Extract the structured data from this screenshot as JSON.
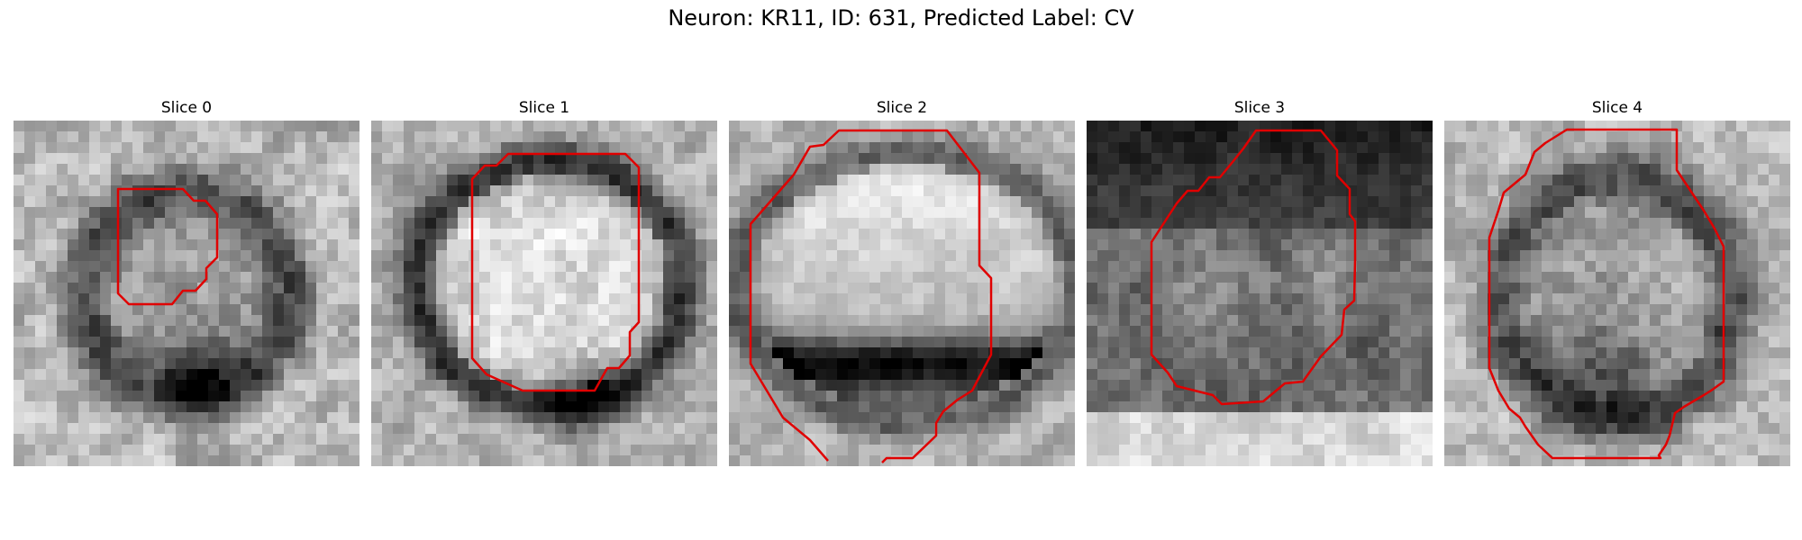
{
  "figure": {
    "title": "Neuron: KR11, ID: 631, Predicted Label: CV"
  },
  "panels": [
    {
      "title": "Slice 0",
      "contour_color": "#e00000",
      "style": "ring-small"
    },
    {
      "title": "Slice 1",
      "contour_color": "#e00000",
      "style": "ring-bright"
    },
    {
      "title": "Slice 2",
      "contour_color": "#e00000",
      "style": "bright-top-dark-bottom"
    },
    {
      "title": "Slice 3",
      "contour_color": "#e00000",
      "style": "dark-top-mottled"
    },
    {
      "title": "Slice 4",
      "contour_color": "#e00000",
      "style": "ring-dark-bottom"
    }
  ]
}
